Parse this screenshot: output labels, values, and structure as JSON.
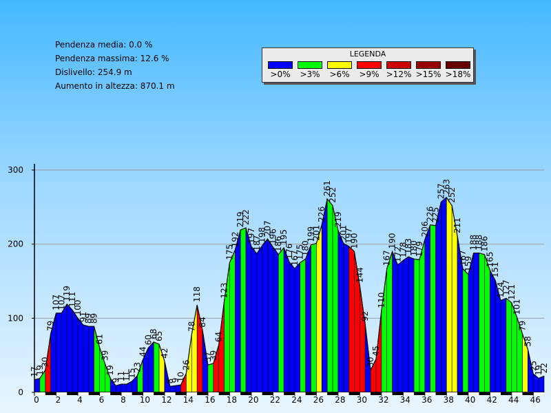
{
  "stats": [
    "Pendenza media: 0.0 %",
    "Pendenza massima: 12.6 %",
    "Dislivello: 254.9 m",
    "Aumento in altezza: 870.1 m"
  ],
  "legend": {
    "title": "LEGENDA",
    "items": [
      {
        "label": ">0%",
        "color": "#0000ff"
      },
      {
        "label": ">3%",
        "color": "#00ff00"
      },
      {
        "label": ">6%",
        "color": "#ffff00"
      },
      {
        "label": ">9%",
        "color": "#ff0000"
      },
      {
        "label": ">12%",
        "color": "#cc0000"
      },
      {
        "label": ">15%",
        "color": "#990000"
      },
      {
        "label": ">18%",
        "color": "#660000"
      }
    ]
  },
  "chart_data": {
    "type": "area",
    "xlim": [
      0,
      47
    ],
    "ylim": [
      0,
      300
    ],
    "xticks": [
      0,
      2,
      4,
      6,
      8,
      10,
      12,
      14,
      16,
      18,
      20,
      22,
      24,
      26,
      28,
      30,
      32,
      34,
      36,
      38,
      40,
      42,
      44,
      46
    ],
    "yticks": [
      0,
      100,
      200,
      300
    ],
    "grid": true,
    "points": [
      {
        "x": 0.0,
        "y": 17,
        "label": "17",
        "c": 0
      },
      {
        "x": 0.5,
        "y": 19,
        "label": "19",
        "c": 0
      },
      {
        "x": 1.0,
        "y": 30,
        "label": "30",
        "c": 1
      },
      {
        "x": 1.5,
        "y": 79,
        "label": "79",
        "c": 3
      },
      {
        "x": 2.0,
        "y": 107,
        "label": "107",
        "c": 0
      },
      {
        "x": 2.5,
        "y": 107,
        "label": "107",
        "c": 0
      },
      {
        "x": 3.0,
        "y": 119,
        "label": "119",
        "c": 0
      },
      {
        "x": 3.5,
        "y": 111,
        "label": "111",
        "c": 0
      },
      {
        "x": 4.0,
        "y": 100,
        "label": "100",
        "c": 0
      },
      {
        "x": 4.5,
        "y": 91,
        "label": "91",
        "c": 0
      },
      {
        "x": 5.0,
        "y": 89,
        "label": "89",
        "c": 0
      },
      {
        "x": 5.5,
        "y": 89,
        "label": "89",
        "c": 0
      },
      {
        "x": 6.0,
        "y": 61,
        "label": "61",
        "c": 1
      },
      {
        "x": 6.5,
        "y": 39,
        "label": "39",
        "c": 1
      },
      {
        "x": 7.0,
        "y": 19,
        "label": "19",
        "c": 1
      },
      {
        "x": 7.5,
        "y": 9,
        "label": "9",
        "c": 0
      },
      {
        "x": 8.0,
        "y": 11,
        "label": "11",
        "c": 0
      },
      {
        "x": 8.5,
        "y": 11,
        "label": "11",
        "c": 0
      },
      {
        "x": 9.0,
        "y": 15,
        "label": "15",
        "c": 0
      },
      {
        "x": 9.5,
        "y": 23,
        "label": "23",
        "c": 0
      },
      {
        "x": 10.0,
        "y": 44,
        "label": "44",
        "c": 1
      },
      {
        "x": 10.5,
        "y": 60,
        "label": "60",
        "c": 0
      },
      {
        "x": 11.0,
        "y": 68,
        "label": "68",
        "c": 0
      },
      {
        "x": 11.5,
        "y": 65,
        "label": "65",
        "c": 1
      },
      {
        "x": 12.0,
        "y": 42,
        "label": "42",
        "c": 2
      },
      {
        "x": 12.5,
        "y": 8,
        "label": "8",
        "c": 0
      },
      {
        "x": 13.0,
        "y": 9,
        "label": "9",
        "c": 0
      },
      {
        "x": 13.5,
        "y": 10,
        "label": "10",
        "c": 0
      },
      {
        "x": 14.0,
        "y": 26,
        "label": "26",
        "c": 3
      },
      {
        "x": 14.5,
        "y": 78,
        "label": "78",
        "c": 2
      },
      {
        "x": 15.0,
        "y": 118,
        "label": "118",
        "c": 2
      },
      {
        "x": 15.5,
        "y": 84,
        "label": "84",
        "c": 3
      },
      {
        "x": 16.0,
        "y": 37,
        "label": "37",
        "c": 0
      },
      {
        "x": 16.5,
        "y": 39,
        "label": "39",
        "c": 1
      },
      {
        "x": 17.0,
        "y": 64,
        "label": "64",
        "c": 3
      },
      {
        "x": 17.5,
        "y": 123,
        "label": "123",
        "c": 3
      },
      {
        "x": 18.0,
        "y": 175,
        "label": "175",
        "c": 1
      },
      {
        "x": 18.5,
        "y": 192,
        "label": "192",
        "c": 1
      },
      {
        "x": 19.0,
        "y": 219,
        "label": "219",
        "c": 0
      },
      {
        "x": 19.5,
        "y": 222,
        "label": "222",
        "c": 1
      },
      {
        "x": 20.0,
        "y": 197,
        "label": "197",
        "c": 0
      },
      {
        "x": 20.5,
        "y": 187,
        "label": "187",
        "c": 0
      },
      {
        "x": 21.0,
        "y": 198,
        "label": "198",
        "c": 0
      },
      {
        "x": 21.5,
        "y": 207,
        "label": "207",
        "c": 0
      },
      {
        "x": 22.0,
        "y": 196,
        "label": "196",
        "c": 0
      },
      {
        "x": 22.5,
        "y": 186,
        "label": "186",
        "c": 0
      },
      {
        "x": 23.0,
        "y": 195,
        "label": "195",
        "c": 1
      },
      {
        "x": 23.5,
        "y": 176,
        "label": "176",
        "c": 0
      },
      {
        "x": 24.0,
        "y": 167,
        "label": "167",
        "c": 0
      },
      {
        "x": 24.5,
        "y": 175,
        "label": "175",
        "c": 0
      },
      {
        "x": 25.0,
        "y": 180,
        "label": "180",
        "c": 1
      },
      {
        "x": 25.5,
        "y": 199,
        "label": "199",
        "c": 0
      },
      {
        "x": 26.0,
        "y": 201,
        "label": "201",
        "c": 1
      },
      {
        "x": 26.5,
        "y": 226,
        "label": "226",
        "c": 2
      },
      {
        "x": 27.0,
        "y": 261,
        "label": "261",
        "c": 0
      },
      {
        "x": 27.5,
        "y": 252,
        "label": "252",
        "c": 1
      },
      {
        "x": 28.0,
        "y": 219,
        "label": "219",
        "c": 1
      },
      {
        "x": 28.5,
        "y": 201,
        "label": "201",
        "c": 0
      },
      {
        "x": 29.0,
        "y": 197,
        "label": "197",
        "c": 0
      },
      {
        "x": 29.5,
        "y": 190,
        "label": "190",
        "c": 3
      },
      {
        "x": 30.0,
        "y": 144,
        "label": "144",
        "c": 3
      },
      {
        "x": 30.5,
        "y": 92,
        "label": "92",
        "c": 3
      },
      {
        "x": 31.0,
        "y": 30,
        "label": "30",
        "c": 0
      },
      {
        "x": 31.5,
        "y": 45,
        "label": "45",
        "c": 3
      },
      {
        "x": 32.0,
        "y": 110,
        "label": "110",
        "c": 3
      },
      {
        "x": 32.5,
        "y": 167,
        "label": "167",
        "c": 1
      },
      {
        "x": 33.0,
        "y": 190,
        "label": "190",
        "c": 1
      },
      {
        "x": 33.5,
        "y": 172,
        "label": "172",
        "c": 0
      },
      {
        "x": 34.0,
        "y": 178,
        "label": "178",
        "c": 0
      },
      {
        "x": 34.5,
        "y": 183,
        "label": "183",
        "c": 0
      },
      {
        "x": 35.0,
        "y": 180,
        "label": "180",
        "c": 0
      },
      {
        "x": 35.5,
        "y": 179,
        "label": "179",
        "c": 1
      },
      {
        "x": 36.0,
        "y": 206,
        "label": "206",
        "c": 1
      },
      {
        "x": 36.5,
        "y": 226,
        "label": "226",
        "c": 0
      },
      {
        "x": 37.0,
        "y": 225,
        "label": "225",
        "c": 1
      },
      {
        "x": 37.5,
        "y": 257,
        "label": "257",
        "c": 0
      },
      {
        "x": 38.0,
        "y": 263,
        "label": "263",
        "c": 0
      },
      {
        "x": 38.5,
        "y": 252,
        "label": "252",
        "c": 2
      },
      {
        "x": 39.0,
        "y": 211,
        "label": "211",
        "c": 2
      },
      {
        "x": 39.5,
        "y": 167,
        "label": "167",
        "c": 0
      },
      {
        "x": 40.0,
        "y": 159,
        "label": "159",
        "c": 1
      },
      {
        "x": 40.5,
        "y": 188,
        "label": "188",
        "c": 0
      },
      {
        "x": 41.0,
        "y": 188,
        "label": "188",
        "c": 0
      },
      {
        "x": 41.5,
        "y": 186,
        "label": "186",
        "c": 1
      },
      {
        "x": 42.0,
        "y": 165,
        "label": "165",
        "c": 1
      },
      {
        "x": 42.5,
        "y": 151,
        "label": "151",
        "c": 0
      },
      {
        "x": 43.0,
        "y": 124,
        "label": "124",
        "c": 0
      },
      {
        "x": 43.5,
        "y": 127,
        "label": "127",
        "c": 0
      },
      {
        "x": 44.0,
        "y": 121,
        "label": "121",
        "c": 1
      },
      {
        "x": 44.5,
        "y": 101,
        "label": "101",
        "c": 1
      },
      {
        "x": 45.0,
        "y": 79,
        "label": "79",
        "c": 1
      },
      {
        "x": 45.5,
        "y": 58,
        "label": "58",
        "c": 2
      },
      {
        "x": 46.0,
        "y": 25,
        "label": "25",
        "c": 0
      },
      {
        "x": 46.5,
        "y": 19,
        "label": "19",
        "c": 0
      },
      {
        "x": 47.0,
        "y": 22,
        "label": "22",
        "c": 0
      }
    ]
  }
}
